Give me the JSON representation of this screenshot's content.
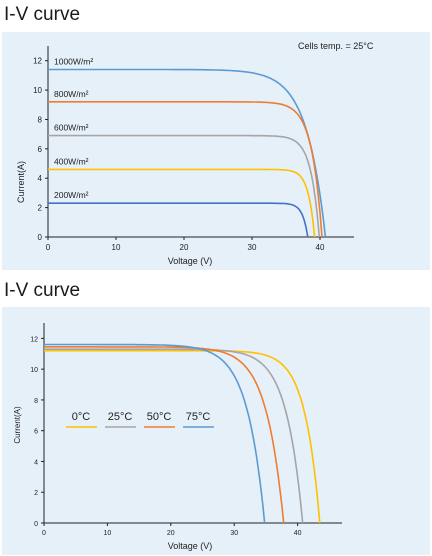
{
  "charts": [
    {
      "title": "I-V curve",
      "type": "line",
      "xlabel": "Voltage  (V)",
      "ylabel": "Current(A)",
      "annotation": "Cells temp. = 25°C",
      "xlim": [
        0,
        45
      ],
      "ylim": [
        0,
        13
      ],
      "xticks": [
        0,
        10,
        20,
        30,
        40
      ],
      "yticks": [
        0,
        2,
        4,
        6,
        8,
        10,
        12
      ],
      "legend": "inline labels above curves",
      "series": [
        {
          "name": "1000W/m²",
          "color": "#5b9bd5",
          "isc": 11.4,
          "voc": 40.8,
          "vknee": 32.0
        },
        {
          "name": "800W/m²",
          "color": "#ed7d31",
          "isc": 9.2,
          "voc": 40.3,
          "vknee": 35.5
        },
        {
          "name": "600W/m²",
          "color": "#a5a5a5",
          "isc": 6.9,
          "voc": 39.9,
          "vknee": 36.0
        },
        {
          "name": "400W/m²",
          "color": "#ffc000",
          "isc": 4.6,
          "voc": 39.2,
          "vknee": 36.3
        },
        {
          "name": "200W/m²",
          "color": "#4472c4",
          "isc": 2.3,
          "voc": 38.2,
          "vknee": 35.8
        }
      ]
    },
    {
      "title": "I-V curve",
      "type": "line",
      "xlabel": "Voltage  (V)",
      "ylabel": "Current(A)",
      "xlim": [
        0,
        47
      ],
      "ylim": [
        0,
        13
      ],
      "xticks": [
        0,
        10,
        20,
        30,
        40
      ],
      "yticks": [
        0,
        2,
        4,
        6,
        8,
        10,
        12
      ],
      "legend": "center-left",
      "series": [
        {
          "name": "0°C",
          "color": "#ffc000",
          "isc": 11.2,
          "voc": 43.5,
          "vknee": 36.0
        },
        {
          "name": "25°C",
          "color": "#a5a5a5",
          "isc": 11.3,
          "voc": 40.8,
          "vknee": 32.5
        },
        {
          "name": "50°C",
          "color": "#ed7d31",
          "isc": 11.45,
          "voc": 37.8,
          "vknee": 29.0
        },
        {
          "name": "75°C",
          "color": "#5b9bd5",
          "isc": 11.6,
          "voc": 34.8,
          "vknee": 26.0
        }
      ]
    }
  ]
}
